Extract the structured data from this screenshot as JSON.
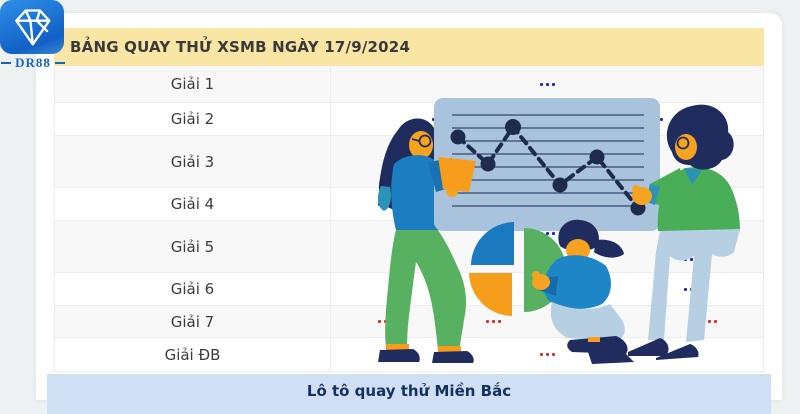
{
  "brand": {
    "name": "DR88",
    "gem_icon": "diamond-gem-icon"
  },
  "header": {
    "title": "BẢNG QUAY THỬ XSMB NGÀY 17/9/2024"
  },
  "table": {
    "rows": [
      {
        "id": "giai-1",
        "label": "Giải 1",
        "placeholder": "...",
        "lines": 1,
        "groups_per_line": 1,
        "color": "blue"
      },
      {
        "id": "giai-2",
        "label": "Giải 2",
        "placeholder": "...",
        "lines": 1,
        "groups_per_line": 2,
        "color": "blue"
      },
      {
        "id": "giai-3",
        "label": "Giải 3",
        "placeholder": "...",
        "lines": 2,
        "groups_per_line": 3,
        "color": "blue"
      },
      {
        "id": "giai-4",
        "label": "Giải 4",
        "placeholder": "...",
        "lines": 1,
        "groups_per_line": 4,
        "color": "blue"
      },
      {
        "id": "giai-5",
        "label": "Giải 5",
        "placeholder": "...",
        "lines": 2,
        "groups_per_line": 3,
        "color": "blue"
      },
      {
        "id": "giai-6",
        "label": "Giải 6",
        "placeholder": "...",
        "lines": 1,
        "groups_per_line": 3,
        "color": "blue"
      },
      {
        "id": "giai-7",
        "label": "Giải 7",
        "placeholder": "...",
        "lines": 1,
        "groups_per_line": 4,
        "color": "red"
      },
      {
        "id": "giai-db",
        "label": "Giải ĐB",
        "placeholder": "...",
        "lines": 1,
        "groups_per_line": 1,
        "color": "red"
      }
    ]
  },
  "footer": {
    "title": "Lô tô quay thử Miền Bắc"
  },
  "colors": {
    "header_bg": "#f9e5a4",
    "footer_bg": "#cfe0f4",
    "dot_blue": "#2323d6",
    "dot_red": "#df2b2b",
    "brand_blue": "#1565c0",
    "illustration_navy": "#212c5e",
    "illustration_green": "#57b160",
    "illustration_blue": "#1c7dc0",
    "illustration_orange": "#f69d1c",
    "board_blue": "#a8c3db"
  },
  "illustration": {
    "description": "Decorative analytics illustration: two standing people holding a board with a dashed trend line, a crouching person holding a slice of a pie chart",
    "icons": [
      "line-chart-board-icon",
      "trend-line-icon",
      "pie-chart-icon"
    ]
  }
}
